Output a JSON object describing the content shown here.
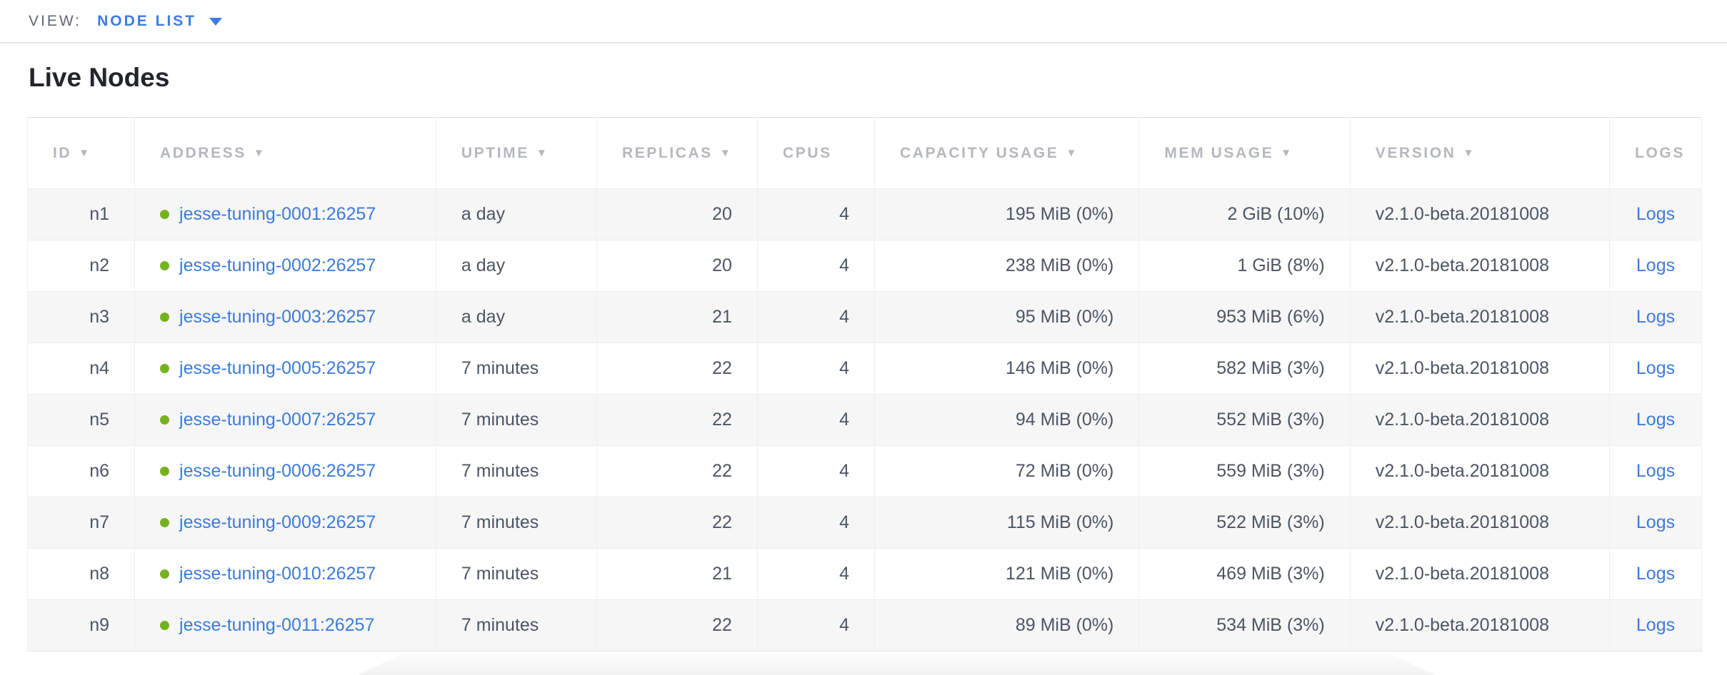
{
  "view_bar": {
    "label": "VIEW:",
    "selected_view": "NODE LIST"
  },
  "page": {
    "title": "Live Nodes"
  },
  "colors": {
    "accent_blue": "#3e7ce0",
    "link_blue": "#3c7bd8",
    "status_green": "#76b21e",
    "header_gray": "#b4b8be",
    "body_text": "#4c5564",
    "row_stripe": "#f6f6f7"
  },
  "icons": {
    "view_caret": "caret-down-icon",
    "sort_indicator": "sort-desc-triangle-icon",
    "node_status": "green-dot-icon"
  },
  "table": {
    "logs_label": "Logs",
    "columns": [
      {
        "key": "id",
        "label": "ID",
        "sortable": true,
        "sort_indicator": "▼"
      },
      {
        "key": "address",
        "label": "ADDRESS",
        "sortable": true,
        "sort_indicator": "▼"
      },
      {
        "key": "uptime",
        "label": "UPTIME",
        "sortable": true,
        "sort_indicator": "▼"
      },
      {
        "key": "replicas",
        "label": "REPLICAS",
        "sortable": true,
        "sort_indicator": "▼"
      },
      {
        "key": "cpus",
        "label": "CPUS",
        "sortable": false,
        "sort_indicator": ""
      },
      {
        "key": "capacity",
        "label": "CAPACITY USAGE",
        "sortable": true,
        "sort_indicator": "▼"
      },
      {
        "key": "mem",
        "label": "MEM USAGE",
        "sortable": true,
        "sort_indicator": "▼"
      },
      {
        "key": "version",
        "label": "VERSION",
        "sortable": true,
        "sort_indicator": "▼"
      },
      {
        "key": "logs",
        "label": "LOGS",
        "sortable": false,
        "sort_indicator": ""
      }
    ],
    "rows": [
      {
        "id": "n1",
        "address": "jesse-tuning-0001:26257",
        "uptime": "a day",
        "replicas": "20",
        "cpus": "4",
        "capacity": "195 MiB (0%)",
        "mem": "2 GiB (10%)",
        "version": "v2.1.0-beta.20181008"
      },
      {
        "id": "n2",
        "address": "jesse-tuning-0002:26257",
        "uptime": "a day",
        "replicas": "20",
        "cpus": "4",
        "capacity": "238 MiB (0%)",
        "mem": "1 GiB (8%)",
        "version": "v2.1.0-beta.20181008"
      },
      {
        "id": "n3",
        "address": "jesse-tuning-0003:26257",
        "uptime": "a day",
        "replicas": "21",
        "cpus": "4",
        "capacity": "95 MiB (0%)",
        "mem": "953 MiB (6%)",
        "version": "v2.1.0-beta.20181008"
      },
      {
        "id": "n4",
        "address": "jesse-tuning-0005:26257",
        "uptime": "7 minutes",
        "replicas": "22",
        "cpus": "4",
        "capacity": "146 MiB (0%)",
        "mem": "582 MiB (3%)",
        "version": "v2.1.0-beta.20181008"
      },
      {
        "id": "n5",
        "address": "jesse-tuning-0007:26257",
        "uptime": "7 minutes",
        "replicas": "22",
        "cpus": "4",
        "capacity": "94 MiB (0%)",
        "mem": "552 MiB (3%)",
        "version": "v2.1.0-beta.20181008"
      },
      {
        "id": "n6",
        "address": "jesse-tuning-0006:26257",
        "uptime": "7 minutes",
        "replicas": "22",
        "cpus": "4",
        "capacity": "72 MiB (0%)",
        "mem": "559 MiB (3%)",
        "version": "v2.1.0-beta.20181008"
      },
      {
        "id": "n7",
        "address": "jesse-tuning-0009:26257",
        "uptime": "7 minutes",
        "replicas": "22",
        "cpus": "4",
        "capacity": "115 MiB (0%)",
        "mem": "522 MiB (3%)",
        "version": "v2.1.0-beta.20181008"
      },
      {
        "id": "n8",
        "address": "jesse-tuning-0010:26257",
        "uptime": "7 minutes",
        "replicas": "21",
        "cpus": "4",
        "capacity": "121 MiB (0%)",
        "mem": "469 MiB (3%)",
        "version": "v2.1.0-beta.20181008"
      },
      {
        "id": "n9",
        "address": "jesse-tuning-0011:26257",
        "uptime": "7 minutes",
        "replicas": "22",
        "cpus": "4",
        "capacity": "89 MiB (0%)",
        "mem": "534 MiB (3%)",
        "version": "v2.1.0-beta.20181008"
      }
    ]
  }
}
